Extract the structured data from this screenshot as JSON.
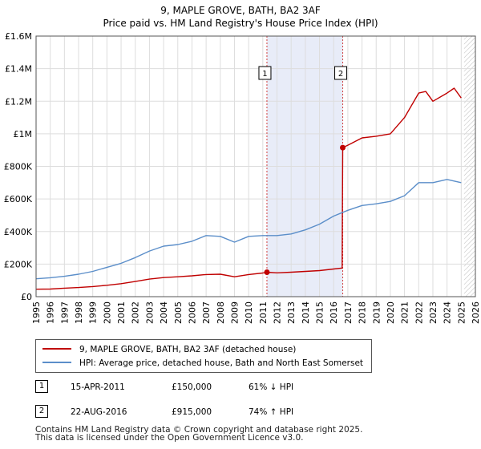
{
  "chart_data": {
    "type": "line",
    "title": "9, MAPLE GROVE, BATH, BA2 3AF",
    "subtitle": "Price paid vs. HM Land Registry's House Price Index (HPI)",
    "xlim": [
      1995,
      2026
    ],
    "ylim": [
      0,
      1600000
    ],
    "x_ticks": [
      1995,
      1996,
      1997,
      1998,
      1999,
      2000,
      2001,
      2002,
      2003,
      2004,
      2005,
      2006,
      2007,
      2008,
      2009,
      2010,
      2011,
      2012,
      2013,
      2014,
      2015,
      2016,
      2017,
      2018,
      2019,
      2020,
      2021,
      2022,
      2023,
      2024,
      2025,
      2026
    ],
    "y_ticks": [
      {
        "value": 0,
        "label": "£0"
      },
      {
        "value": 200000,
        "label": "£200K"
      },
      {
        "value": 400000,
        "label": "£400K"
      },
      {
        "value": 600000,
        "label": "£600K"
      },
      {
        "value": 800000,
        "label": "£800K"
      },
      {
        "value": 1000000,
        "label": "£1M"
      },
      {
        "value": 1200000,
        "label": "£1.2M"
      },
      {
        "value": 1400000,
        "label": "£1.4M"
      },
      {
        "value": 1600000,
        "label": "£1.6M"
      }
    ],
    "shaded_period": [
      2011.29,
      2016.64
    ],
    "hatched_from": 2025.2,
    "series": [
      {
        "name": "9, MAPLE GROVE, BATH, BA2 3AF (detached house)",
        "color": "#c00000",
        "x": [
          1995,
          1996,
          1997,
          1998,
          1999,
          2000,
          2001,
          2002,
          2003,
          2004,
          2005,
          2006,
          2007,
          2008,
          2009,
          2010,
          2011,
          2011.29,
          2012,
          2013,
          2014,
          2015,
          2016,
          2016.6,
          2016.64,
          2017,
          2018,
          2019,
          2020,
          2021,
          2022,
          2022.5,
          2023,
          2024,
          2024.5,
          2025
        ],
        "y": [
          46000,
          47000,
          52000,
          56000,
          62000,
          70000,
          80000,
          93000,
          108000,
          117000,
          122000,
          128000,
          136000,
          138000,
          122000,
          136000,
          145000,
          150000,
          146000,
          150000,
          155000,
          160000,
          170000,
          176000,
          915000,
          930000,
          975000,
          985000,
          1000000,
          1100000,
          1250000,
          1260000,
          1200000,
          1250000,
          1280000,
          1220000
        ]
      },
      {
        "name": "HPI: Average price, detached house, Bath and North East Somerset",
        "color": "#5b8ec9",
        "x": [
          1995,
          1996,
          1997,
          1998,
          1999,
          2000,
          2001,
          2002,
          2003,
          2004,
          2005,
          2006,
          2007,
          2008,
          2009,
          2010,
          2011,
          2012,
          2013,
          2014,
          2015,
          2016,
          2017,
          2018,
          2019,
          2020,
          2021,
          2022,
          2023,
          2024,
          2025
        ],
        "y": [
          110000,
          116000,
          125000,
          138000,
          155000,
          180000,
          205000,
          240000,
          280000,
          310000,
          320000,
          340000,
          375000,
          370000,
          335000,
          370000,
          375000,
          375000,
          385000,
          410000,
          445000,
          495000,
          530000,
          560000,
          570000,
          585000,
          620000,
          700000,
          700000,
          720000,
          700000
        ]
      }
    ],
    "markers": [
      {
        "label": "1",
        "x": 2011.29,
        "y": 150000
      },
      {
        "label": "2",
        "x": 2016.64,
        "y": 915000
      }
    ]
  },
  "legend": {
    "items": [
      {
        "label": "9, MAPLE GROVE, BATH, BA2 3AF (detached house)",
        "color": "#c00000"
      },
      {
        "label": "HPI: Average price, detached house, Bath and North East Somerset",
        "color": "#5b8ec9"
      }
    ]
  },
  "transactions": [
    {
      "num": "1",
      "date": "15-APR-2011",
      "price": "£150,000",
      "hpi": "61% ↓ HPI"
    },
    {
      "num": "2",
      "date": "22-AUG-2016",
      "price": "£915,000",
      "hpi": "74% ↑ HPI"
    }
  ],
  "footer": {
    "line1": "Contains HM Land Registry data © Crown copyright and database right 2025.",
    "line2": "This data is licensed under the Open Government Licence v3.0."
  }
}
